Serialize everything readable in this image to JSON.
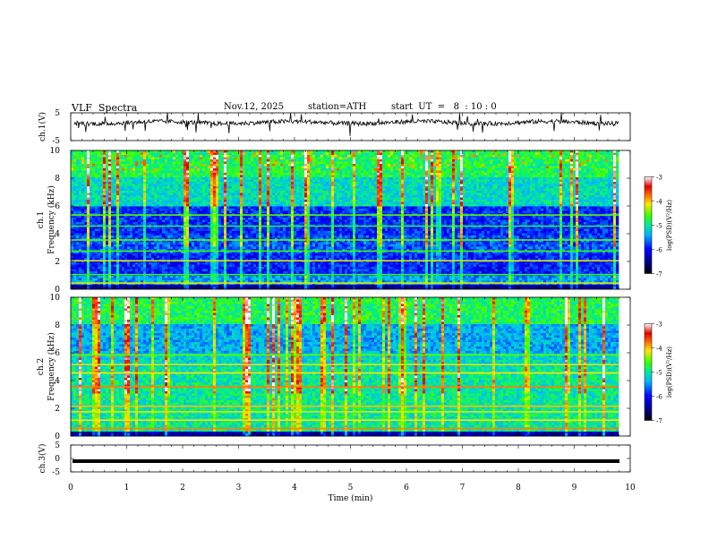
{
  "header": {
    "title": "VLF  Spectra",
    "date": "Nov.12, 2025",
    "station": "station=ATH",
    "start_ut": "start  UT  =   8  : 10 : 0"
  },
  "chart_data": [
    {
      "type": "line",
      "panel": "ch1-waveform",
      "ylabel": "ch.1(V)",
      "ylim": [
        -5,
        5
      ],
      "yticks": [
        "5",
        "-5"
      ],
      "xlim": [
        0,
        10
      ],
      "baseline_v": 1.5,
      "color": "#000000"
    },
    {
      "type": "heatmap",
      "panel": "ch1-spectrogram",
      "ylabel": "Frequency (kHz)",
      "channel_label": "ch.1",
      "ylim": [
        0,
        10
      ],
      "yticks": [
        "0",
        "2",
        "4",
        "6",
        "8",
        "10"
      ],
      "xlim": [
        0,
        9.8
      ],
      "colorbar": {
        "label": "log(PSD)(V²/Hz)",
        "range": [
          -7,
          -3
        ],
        "ticks": [
          "-3",
          "-4",
          "-5",
          "-6",
          "-7"
        ]
      }
    },
    {
      "type": "heatmap",
      "panel": "ch2-spectrogram",
      "ylabel": "Frequency (kHz)",
      "channel_label": "ch.2",
      "ylim": [
        0,
        10
      ],
      "yticks": [
        "0",
        "2",
        "4",
        "6",
        "8",
        "10"
      ],
      "xlim": [
        0,
        9.8
      ],
      "colorbar": {
        "label": "log(PSD)(V²/Hz)",
        "range": [
          -7,
          -3
        ],
        "ticks": [
          "-3",
          "-4",
          "-5",
          "-6",
          "-7"
        ]
      }
    },
    {
      "type": "line",
      "panel": "ch3-waveform",
      "ylabel": "ch.3(V)",
      "ylim": [
        -5,
        5
      ],
      "yticks": [
        "5",
        "0",
        "-5"
      ],
      "xlim": [
        0,
        10
      ],
      "constant_v": -1.0,
      "color": "#000000"
    }
  ],
  "xaxis": {
    "label": "Time  (min)",
    "ticks": [
      "0",
      "1",
      "2",
      "3",
      "4",
      "5",
      "6",
      "7",
      "8",
      "9",
      "10"
    ]
  }
}
